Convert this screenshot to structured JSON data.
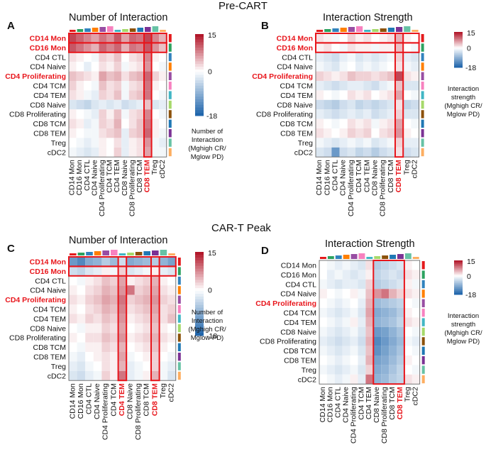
{
  "sections": {
    "top": "Pre-CART",
    "bottom": "CAR-T Peak"
  },
  "panel_letters": [
    "A",
    "B",
    "C",
    "D"
  ],
  "titles": {
    "A": "Number of Interaction",
    "B": "Interaction Strength",
    "C": "Number of Interaction",
    "D": "Interaction Strength"
  },
  "legend_notes": {
    "A": [
      "Number of",
      "Interaction",
      "(Mghigh CR/",
      "Mglow PD)"
    ],
    "B": [
      "Interaction",
      "strength",
      "(Mghigh CR/",
      "Mglow PD)"
    ],
    "C": [
      "Number of",
      "Interaction",
      "(Mghigh CR/",
      "Mglow PD)"
    ],
    "D": [
      "Interaction",
      "strength",
      "(Mghigh CR/",
      "Mglow PD)"
    ]
  },
  "colors": {
    "high": "#b2182b",
    "mid": "#ffffff",
    "low": "#2166ac",
    "highlight_box": "#e8151b",
    "highlight_text": "#e8151b",
    "cell_types": [
      "#e41a1c",
      "#2ca25f",
      "#3182bd",
      "#ff7f00",
      "#984ea3",
      "#f781bf",
      "#41b6c4",
      "#a6d96a",
      "#8c510a",
      "#1f78b4",
      "#7b3294",
      "#66c2a5",
      "#fdae61",
      "#c7e9c0"
    ]
  },
  "chart_data": [
    {
      "id": "A",
      "type": "heatmap",
      "title": "Number of Interaction",
      "colorbar": {
        "max": 15,
        "min": -18,
        "ticks": [
          "15",
          "0",
          "-18"
        ]
      },
      "highlight_rows": [
        0,
        1
      ],
      "highlight_cols": [
        10
      ],
      "rows": [
        "CD14 Mon",
        "CD16 Mon",
        "CD4 CTL",
        "CD4 Naive",
        "CD4 Proliferating",
        "CD4 TCM",
        "CD4 TEM",
        "CD8 Naive",
        "CD8 Proliferating",
        "CD8 TCM",
        "CD8 TEM",
        "Treg",
        "cDC2"
      ],
      "cols": [
        "CD14 Mon",
        "CD16 Mon",
        "CD4 CTL",
        "CD4 Naive",
        "CD4 Proliferating",
        "CD4 TCM",
        "CD4 TEM",
        "CD8 Naive",
        "CD8 Proliferating",
        "CD8 TCM",
        "CD8 TEM",
        "Treg",
        "cDC2"
      ],
      "values": [
        [
          12,
          10,
          8,
          6,
          9,
          7,
          11,
          6,
          10,
          9,
          12,
          8,
          5
        ],
        [
          11,
          9,
          7,
          5,
          10,
          8,
          10,
          5,
          9,
          8,
          11,
          7,
          4
        ],
        [
          2,
          1,
          0,
          -1,
          3,
          2,
          4,
          0,
          2,
          3,
          8,
          1,
          0
        ],
        [
          1,
          0,
          -2,
          0,
          2,
          1,
          3,
          -1,
          1,
          2,
          7,
          0,
          -1
        ],
        [
          4,
          3,
          2,
          1,
          6,
          4,
          5,
          2,
          4,
          5,
          10,
          3,
          1
        ],
        [
          3,
          1,
          0,
          -1,
          4,
          2,
          3,
          -1,
          2,
          3,
          9,
          1,
          0
        ],
        [
          2,
          1,
          -1,
          -2,
          3,
          2,
          4,
          -1,
          3,
          4,
          9,
          0,
          -1
        ],
        [
          -3,
          -4,
          -5,
          -3,
          -2,
          -3,
          -2,
          -4,
          -3,
          -2,
          4,
          -3,
          -2
        ],
        [
          1,
          0,
          -1,
          -2,
          3,
          1,
          4,
          -1,
          2,
          3,
          8,
          0,
          -1
        ],
        [
          2,
          1,
          -2,
          -1,
          3,
          2,
          5,
          0,
          2,
          4,
          9,
          1,
          0
        ],
        [
          1,
          0,
          -1,
          -1,
          2,
          3,
          4,
          -2,
          3,
          4,
          10,
          1,
          -1
        ],
        [
          0,
          -1,
          -2,
          -1,
          1,
          0,
          2,
          -2,
          1,
          2,
          7,
          -1,
          -2
        ],
        [
          -1,
          -2,
          -3,
          -2,
          1,
          0,
          3,
          -2,
          1,
          2,
          6,
          -1,
          -1
        ]
      ]
    },
    {
      "id": "B",
      "type": "heatmap",
      "title": "Interaction Strength",
      "colorbar": {
        "max": 15,
        "min": -18,
        "ticks": [
          "15",
          "0",
          "-18"
        ]
      },
      "highlight_rows": [
        0,
        1
      ],
      "highlight_cols": [
        10
      ],
      "rows": [
        "CD14 Mon",
        "CD16 Mon",
        "CD4 CTL",
        "CD4 Naive",
        "CD4 Proliferating",
        "CD4 TCM",
        "CD4 TEM",
        "CD8 Naive",
        "CD8 Proliferating",
        "CD8 TCM",
        "CD8 TEM",
        "Treg",
        "cDC2"
      ],
      "cols": [
        "CD14 Mon",
        "CD16 Mon",
        "CD4 CTL",
        "CD4 Naive",
        "CD4 Proliferating",
        "CD4 TCM",
        "CD4 TEM",
        "CD8 Naive",
        "CD8 Proliferating",
        "CD8 TCM",
        "CD8 TEM",
        "Treg",
        "cDC2"
      ],
      "values": [
        [
          2,
          1,
          -1,
          0,
          3,
          1,
          2,
          0,
          1,
          2,
          5,
          1,
          0
        ],
        [
          1,
          2,
          0,
          -1,
          2,
          1,
          1,
          -1,
          1,
          1,
          4,
          0,
          -1
        ],
        [
          -2,
          -3,
          -4,
          -2,
          -1,
          -3,
          -2,
          -3,
          -2,
          -1,
          3,
          -2,
          -3
        ],
        [
          -1,
          -2,
          -3,
          -1,
          0,
          -2,
          -1,
          -2,
          -1,
          0,
          2,
          -1,
          -2
        ],
        [
          3,
          2,
          1,
          2,
          4,
          3,
          3,
          2,
          3,
          4,
          12,
          2,
          1
        ],
        [
          -2,
          -3,
          -4,
          -3,
          -2,
          -2,
          -3,
          -4,
          -2,
          -1,
          4,
          -3,
          -3
        ],
        [
          1,
          0,
          -1,
          0,
          2,
          1,
          2,
          0,
          1,
          2,
          6,
          0,
          -1
        ],
        [
          -4,
          -5,
          -6,
          -4,
          -3,
          -5,
          -4,
          -5,
          -4,
          -3,
          2,
          -5,
          -4
        ],
        [
          -2,
          -3,
          -4,
          -3,
          -2,
          -3,
          -2,
          -4,
          -3,
          -2,
          3,
          -3,
          -3
        ],
        [
          1,
          0,
          -1,
          0,
          2,
          1,
          2,
          -1,
          1,
          2,
          6,
          0,
          -1
        ],
        [
          2,
          1,
          0,
          1,
          3,
          2,
          3,
          0,
          2,
          3,
          7,
          1,
          0
        ],
        [
          -1,
          -2,
          -3,
          -2,
          -1,
          -2,
          -1,
          -3,
          -2,
          -1,
          3,
          -2,
          -2
        ],
        [
          -3,
          -4,
          -12,
          -4,
          -3,
          -5,
          -4,
          -6,
          -4,
          -3,
          2,
          -4,
          -3
        ]
      ]
    },
    {
      "id": "C",
      "type": "heatmap",
      "title": "Number of Interaction",
      "colorbar": {
        "max": 15,
        "min": -18,
        "ticks": [
          "15",
          "0",
          "-18"
        ]
      },
      "highlight_rows": [
        0,
        1
      ],
      "highlight_cols": [
        6,
        10
      ],
      "rows": [
        "CD14 Mon",
        "CD16 Mon",
        "CD4 CTL",
        "CD4 Naive",
        "CD4 Proliferating",
        "CD4 TCM",
        "CD4 TEM",
        "CD8 Naive",
        "CD8 Proliferating",
        "CD8 TCM",
        "CD8 TEM",
        "Treg",
        "cDC2"
      ],
      "cols": [
        "CD14 Mon",
        "CD16 Mon",
        "CD4 CTL",
        "CD4 Naive",
        "CD4 Proliferating",
        "CD4 TCM",
        "CD4 TEM",
        "CD8 Naive",
        "CD8 Proliferating",
        "CD8 TCM",
        "CD8 TEM",
        "Treg",
        "cDC2"
      ],
      "values": [
        [
          -12,
          -14,
          -10,
          -9,
          -6,
          -8,
          -4,
          -10,
          -9,
          -8,
          -6,
          -9,
          -11
        ],
        [
          -4,
          -5,
          -3,
          -2,
          1,
          -1,
          3,
          -3,
          -2,
          -1,
          1,
          -2,
          -3
        ],
        [
          0,
          -1,
          1,
          2,
          4,
          3,
          6,
          1,
          2,
          3,
          5,
          1,
          0
        ],
        [
          1,
          0,
          2,
          3,
          5,
          4,
          7,
          9,
          3,
          4,
          6,
          2,
          1
        ],
        [
          2,
          1,
          3,
          4,
          6,
          5,
          9,
          3,
          4,
          5,
          7,
          3,
          2
        ],
        [
          1,
          0,
          2,
          3,
          5,
          4,
          8,
          2,
          3,
          4,
          6,
          2,
          3
        ],
        [
          2,
          1,
          3,
          2,
          4,
          3,
          7,
          1,
          2,
          3,
          5,
          2,
          4
        ],
        [
          0,
          -1,
          1,
          1,
          3,
          2,
          6,
          0,
          1,
          2,
          4,
          1,
          0
        ],
        [
          1,
          0,
          2,
          2,
          4,
          3,
          7,
          1,
          2,
          3,
          5,
          2,
          1
        ],
        [
          0,
          -1,
          1,
          1,
          3,
          2,
          5,
          0,
          1,
          2,
          4,
          1,
          0
        ],
        [
          -1,
          -2,
          0,
          1,
          2,
          1,
          6,
          -1,
          0,
          1,
          3,
          0,
          -1
        ],
        [
          -2,
          -3,
          -1,
          0,
          2,
          1,
          5,
          -2,
          -1,
          0,
          3,
          -1,
          -2
        ],
        [
          -3,
          -4,
          -2,
          -1,
          3,
          1,
          9,
          -2,
          -1,
          1,
          5,
          -1,
          -3
        ]
      ]
    },
    {
      "id": "D",
      "type": "heatmap",
      "title": "Interaction Strength",
      "colorbar": {
        "max": 15,
        "min": -18,
        "ticks": [
          "15",
          "0",
          "-18"
        ]
      },
      "highlight_rows": [],
      "highlight_cols": [
        7,
        8,
        9,
        10
      ],
      "rows": [
        "CD14 Mon",
        "CD16 Mon",
        "CD4 CTL",
        "CD4 Naive",
        "CD4 Proliferating",
        "CD4 TCM",
        "CD4 TEM",
        "CD8 Naive",
        "CD8 Proliferating",
        "CD8 TCM",
        "CD8 TEM",
        "Treg",
        "cDC2"
      ],
      "cols": [
        "CD14 Mon",
        "CD16 Mon",
        "CD4 CTL",
        "CD4 Naive",
        "CD4 Proliferating",
        "CD4 TCM",
        "CD4 TEM",
        "CD8 Naive",
        "CD8 Proliferating",
        "CD8 TCM",
        "CD8 TEM",
        "Treg",
        "cDC2"
      ],
      "values": [
        [
          0,
          -1,
          -2,
          -1,
          -2,
          -3,
          2,
          -6,
          -5,
          -4,
          -3,
          1,
          0
        ],
        [
          0,
          -2,
          -1,
          -2,
          -3,
          -2,
          1,
          -5,
          -4,
          -3,
          -4,
          2,
          1
        ],
        [
          -1,
          -2,
          -3,
          -2,
          -2,
          -3,
          3,
          -6,
          -5,
          -4,
          -3,
          1,
          -1
        ],
        [
          1,
          0,
          -1,
          0,
          1,
          -1,
          4,
          7,
          9,
          5,
          3,
          2,
          1
        ],
        [
          0,
          -1,
          -2,
          -1,
          0,
          -2,
          5,
          -8,
          -7,
          -6,
          -5,
          0,
          -1
        ],
        [
          -1,
          -2,
          -3,
          -2,
          -1,
          -3,
          6,
          -10,
          -9,
          -8,
          -6,
          1,
          0
        ],
        [
          0,
          -1,
          -2,
          -1,
          1,
          -2,
          5,
          -9,
          -8,
          -7,
          -5,
          2,
          1
        ],
        [
          -1,
          -2,
          -3,
          -2,
          -1,
          -3,
          4,
          -12,
          -11,
          -9,
          -7,
          0,
          -1
        ],
        [
          -2,
          -3,
          -4,
          -3,
          -2,
          -4,
          5,
          -14,
          -12,
          -10,
          -8,
          -1,
          -2
        ],
        [
          -1,
          -2,
          -3,
          -2,
          -1,
          -3,
          4,
          -13,
          -11,
          -9,
          -7,
          0,
          -1
        ],
        [
          0,
          -1,
          -2,
          -1,
          0,
          -2,
          5,
          -11,
          -10,
          -8,
          -6,
          1,
          0
        ],
        [
          -1,
          -2,
          -3,
          -2,
          -1,
          -3,
          3,
          -10,
          -9,
          -7,
          -5,
          0,
          -1
        ],
        [
          0,
          -1,
          -2,
          -1,
          1,
          -2,
          9,
          -9,
          -8,
          -6,
          -5,
          2,
          1
        ]
      ]
    }
  ]
}
